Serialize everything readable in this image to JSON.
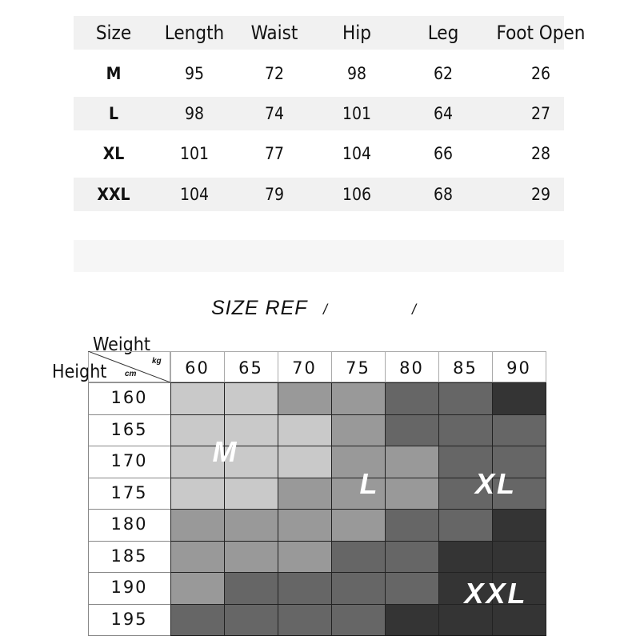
{
  "measurements": {
    "headers": [
      "Size",
      "Length",
      "Waist",
      "Hip",
      "Leg",
      "Foot Open"
    ],
    "rows": [
      [
        "M",
        "95",
        "72",
        "98",
        "62",
        "26"
      ],
      [
        "L",
        "98",
        "74",
        "101",
        "64",
        "27"
      ],
      [
        "XL",
        "101",
        "77",
        "104",
        "66",
        "28"
      ],
      [
        "XXL",
        "104",
        "79",
        "106",
        "68",
        "29"
      ]
    ]
  },
  "size_ref": {
    "title": "SIZE REF",
    "slash": "/",
    "weight_label": "Weight",
    "height_label": "Height",
    "weight_unit": "kg",
    "height_unit": "cm",
    "weights": [
      "60",
      "65",
      "70",
      "75",
      "80",
      "85",
      "90"
    ],
    "heights": [
      "160",
      "165",
      "170",
      "175",
      "180",
      "185",
      "190",
      "195"
    ],
    "shade_levels": [
      [
        0,
        0,
        1,
        1,
        2,
        2,
        3
      ],
      [
        0,
        0,
        0,
        1,
        2,
        2,
        2
      ],
      [
        0,
        0,
        0,
        1,
        1,
        2,
        2
      ],
      [
        0,
        0,
        1,
        1,
        1,
        2,
        2
      ],
      [
        1,
        1,
        1,
        1,
        2,
        2,
        3
      ],
      [
        1,
        1,
        1,
        2,
        2,
        3,
        3
      ],
      [
        1,
        2,
        2,
        2,
        2,
        3,
        3
      ],
      [
        2,
        2,
        2,
        2,
        3,
        3,
        3
      ]
    ],
    "shade_colors": [
      "#c9c9c9",
      "#999999",
      "#666666",
      "#343434"
    ],
    "size_labels": [
      "M",
      "L",
      "XL",
      "XXL"
    ]
  }
}
